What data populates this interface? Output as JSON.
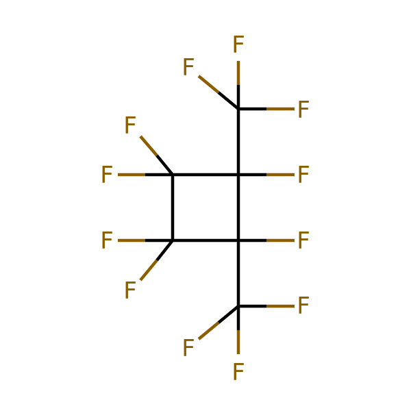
{
  "molecule": {
    "colors": {
      "bond": "#000000",
      "fluorine": "#8B5E00",
      "background": "#FFFFFF"
    },
    "atom_labels": {
      "f1": "F",
      "f2": "F",
      "f3": "F",
      "f4": "F",
      "f5": "F",
      "f6": "F",
      "f7": "F",
      "f8": "F",
      "f9": "F",
      "f10": "F",
      "f11": "F",
      "f12": "F"
    }
  }
}
